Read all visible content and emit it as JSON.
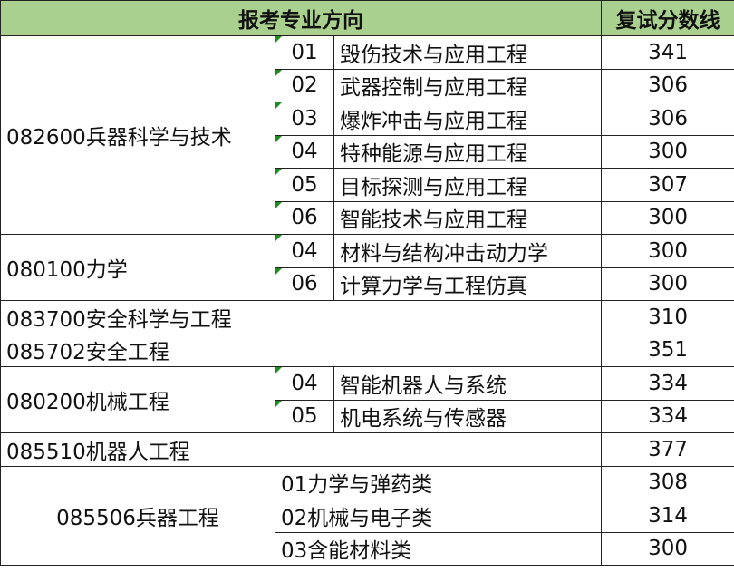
{
  "header": {
    "direction": "报考专业方向",
    "score": "复试分数线"
  },
  "groups": [
    {
      "major": "082600兵器科学与技术",
      "subs": [
        {
          "code": "01",
          "name": "毁伤技术与应用工程",
          "score": "341"
        },
        {
          "code": "02",
          "name": "武器控制与应用工程",
          "score": "306"
        },
        {
          "code": "03",
          "name": "爆炸冲击与应用工程",
          "score": "306"
        },
        {
          "code": "04",
          "name": "特种能源与应用工程",
          "score": "300"
        },
        {
          "code": "05",
          "name": "目标探测与应用工程",
          "score": "307"
        },
        {
          "code": "06",
          "name": "智能技术与应用工程",
          "score": "300"
        }
      ]
    },
    {
      "major": "080100力学",
      "subs": [
        {
          "code": "04",
          "name": "材料与结构冲击动力学",
          "score": "300"
        },
        {
          "code": "06",
          "name": "计算力学与工程仿真",
          "score": "300"
        }
      ]
    },
    {
      "major": "083700安全科学与工程",
      "score": "310"
    },
    {
      "major": "085702安全工程",
      "score": "351"
    },
    {
      "major": "080200机械工程",
      "subs": [
        {
          "code": "04",
          "name": "智能机器人与系统",
          "score": "334"
        },
        {
          "code": "05",
          "name": "机电系统与传感器",
          "score": "334"
        }
      ]
    },
    {
      "major": "085510机器人工程",
      "score": "377"
    },
    {
      "major": "085506兵器工程",
      "centered": true,
      "merged_subs": [
        {
          "name": "01力学与弹药类",
          "score": "308"
        },
        {
          "name": "02机械与电子类",
          "score": "314"
        },
        {
          "name": "03含能材料类",
          "score": "300"
        }
      ]
    }
  ],
  "colors": {
    "header_bg": "#A9D08E",
    "text_marker": "#1E8C1E"
  }
}
